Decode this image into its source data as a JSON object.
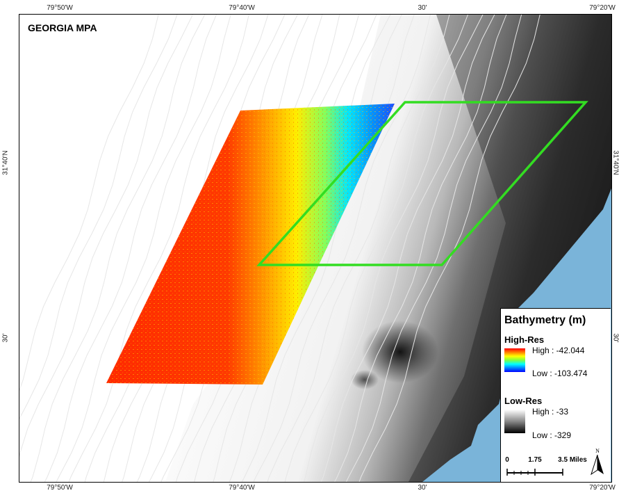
{
  "map": {
    "title": "GEORGIA MPA",
    "top_ticks": [
      "79°50'W",
      "79°40'W",
      "30'",
      "79°20'W"
    ],
    "bottom_ticks": [
      "79°50'W",
      "79°40'W",
      "30'",
      "79°20'W"
    ],
    "left_ticks": [
      "31°40'N",
      "30'"
    ],
    "right_ticks": [
      "31°40'N",
      "30'"
    ],
    "colors": {
      "land": "#7ab4d9",
      "mpa_outline": "#33dd22",
      "highres_shallow": "#ff2a00",
      "highres_mid": "#ffee00",
      "highres_deep": "#1a4fff",
      "lowres_high": "#ffffff",
      "lowres_low": "#000000"
    }
  },
  "legend": {
    "title": "Bathymetry (m)",
    "high_res": {
      "label": "High-Res",
      "high": "High : -42.044",
      "low": "Low : -103.474"
    },
    "low_res": {
      "label": "Low-Res",
      "high": "High : -33",
      "low": "Low : -329"
    },
    "scale": {
      "labels": [
        "0",
        "1.75",
        "3.5 Miles"
      ]
    },
    "north_label": "N"
  }
}
